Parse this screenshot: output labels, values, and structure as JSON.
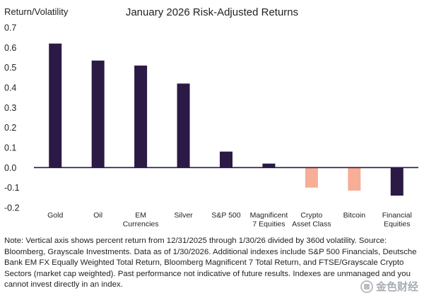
{
  "chart_data": {
    "type": "bar",
    "title": "January 2026 Risk-Adjusted Returns",
    "ylabel": "Return/Volatility",
    "xlabel": "",
    "ylim": [
      -0.2,
      0.7
    ],
    "yticks": [
      "0.7",
      "0.6",
      "0.5",
      "0.4",
      "0.3",
      "0.2",
      "0.1",
      "0.0",
      "-0.1",
      "-0.2"
    ],
    "ytick_values": [
      0.7,
      0.6,
      0.5,
      0.4,
      0.3,
      0.2,
      0.1,
      0.0,
      -0.1,
      -0.2
    ],
    "categories": [
      [
        "Gold"
      ],
      [
        "Oil"
      ],
      [
        "EM",
        "Currencies"
      ],
      [
        "Silver"
      ],
      [
        "S&P 500"
      ],
      [
        "Magnificent",
        "7 Equities"
      ],
      [
        "Crypto",
        "Asset Class"
      ],
      [
        "Bitcoin"
      ],
      [
        "Financial",
        "Equities"
      ]
    ],
    "values": [
      0.62,
      0.535,
      0.51,
      0.42,
      0.08,
      0.02,
      -0.1,
      -0.115,
      -0.14
    ],
    "colors": [
      "#2a1a45",
      "#2a1a45",
      "#2a1a45",
      "#2a1a45",
      "#2a1a45",
      "#2a1a45",
      "#f7ad96",
      "#f7ad96",
      "#2a1a45"
    ],
    "grid": false
  },
  "note": "Note: Vertical axis shows percent return from 12/31/2025 through 1/30/26 divided by 360d volatility. Source: Bloomberg, Grayscale Investments. Data as of 1/30/2026. Additional indexes include S&P 500 Financials, Deutsche Bank EM FX Equally Weighted Total Return, Bloomberg Magnificent 7 Total Return, and FTSE/Grayscale Crypto Sectors (market cap weighted). Past performance not indicative of future results. Indexes are unmanaged and you cannot invest directly in an index.",
  "watermark": {
    "text": "金色财经",
    "icon": "jinse-logo-icon"
  }
}
